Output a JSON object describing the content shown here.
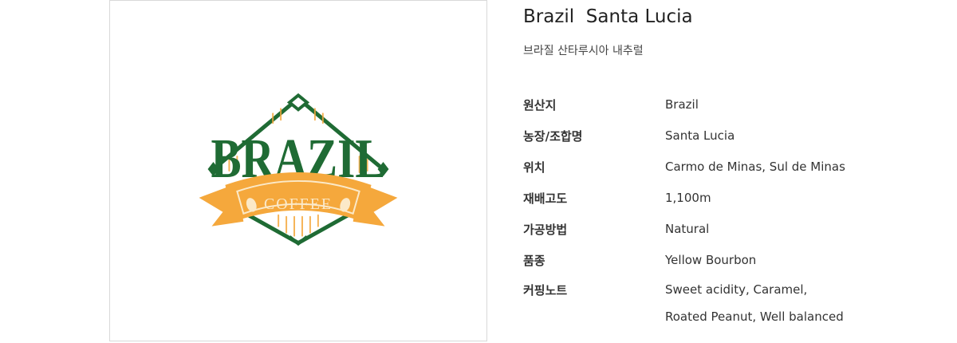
{
  "product": {
    "title": "Brazil  Santa Lucia",
    "subtitle": "브라질 산타루시아 내추럴"
  },
  "logo": {
    "main_text": "BRAZIL",
    "ribbon_text": "COFFEE",
    "colors": {
      "green": "#1f6b34",
      "orange": "#f5a83c",
      "cream": "#fbe9c8"
    }
  },
  "specs": [
    {
      "label": "원산지",
      "value": "Brazil"
    },
    {
      "label": "농장/조합명",
      "value": "Santa Lucia"
    },
    {
      "label": "위치",
      "value": "Carmo de Minas, Sul de Minas"
    },
    {
      "label": "재배고도",
      "value": "1,100m"
    },
    {
      "label": "가공방법",
      "value": "Natural"
    },
    {
      "label": "품종",
      "value": "Yellow Bourbon"
    },
    {
      "label": "커핑노트",
      "value": "Sweet acidity, Caramel,",
      "value2": "Roated Peanut, Well balanced"
    }
  ]
}
